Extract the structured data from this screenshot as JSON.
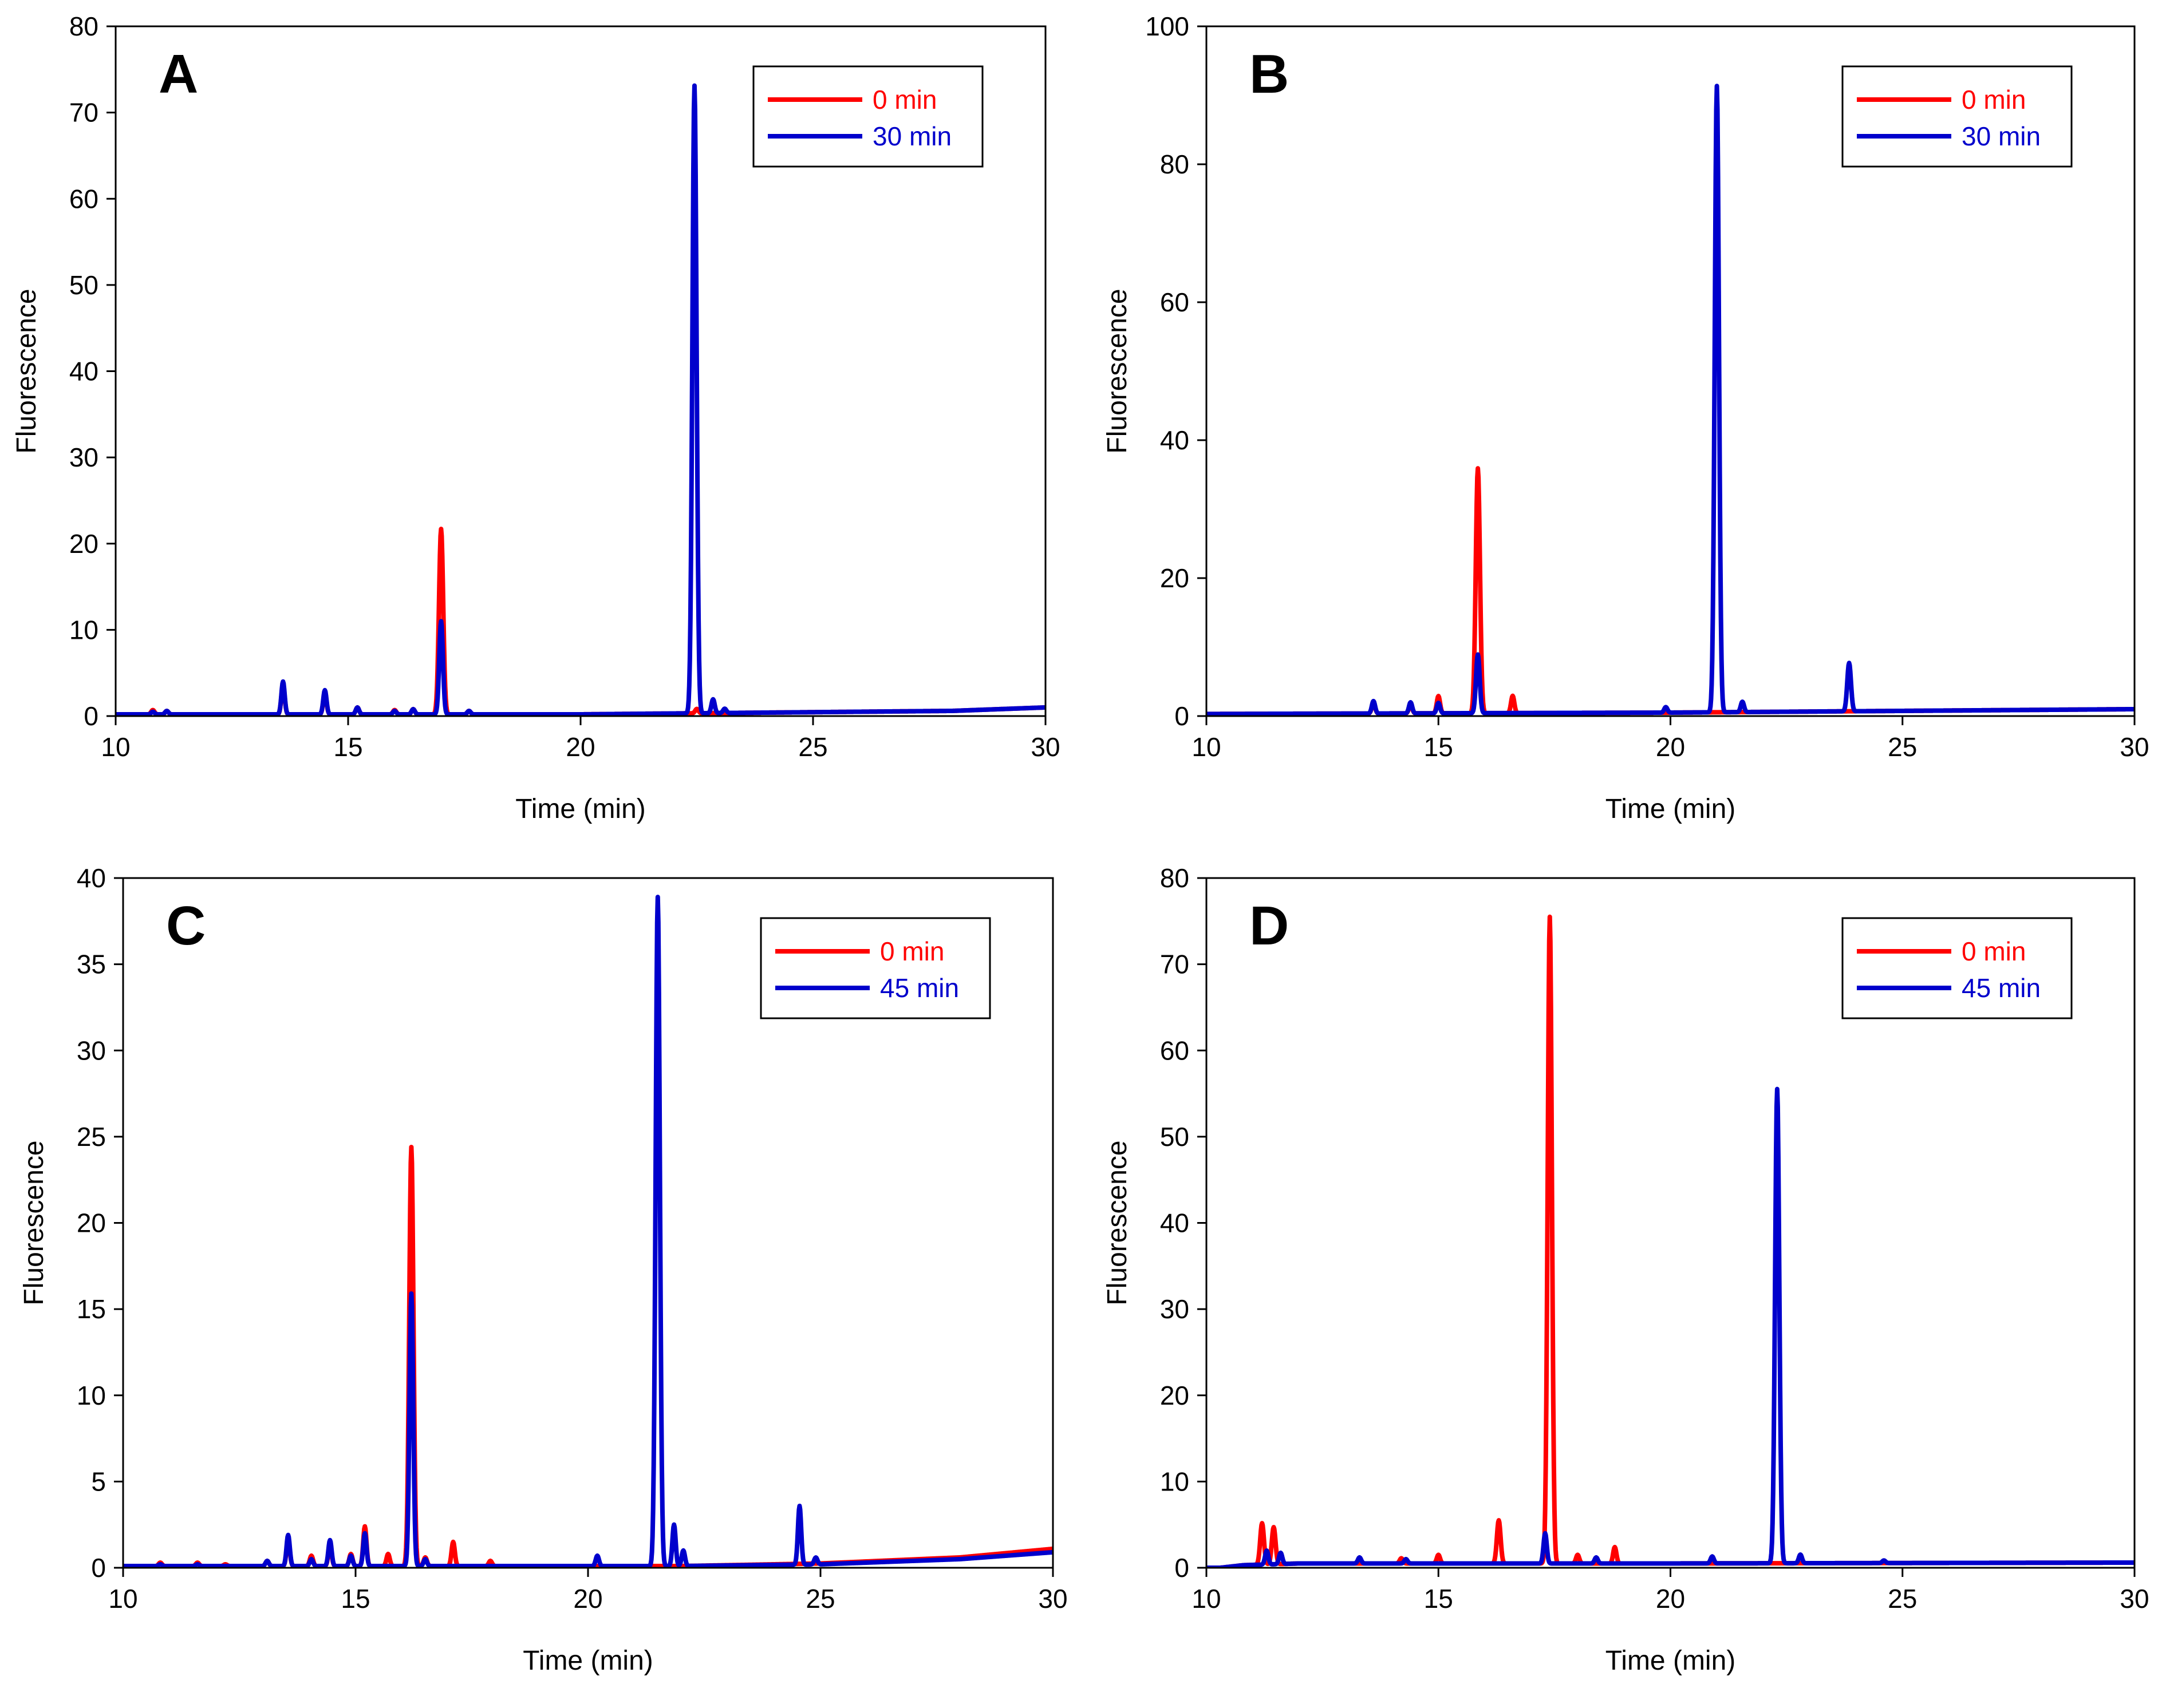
{
  "colors": {
    "red": "#ff0000",
    "blue": "#0000cc",
    "axis": "#000000"
  },
  "chart_data": [
    {
      "type": "line",
      "panel": "A",
      "xlabel": "Time (min)",
      "ylabel": "Fluorescence",
      "xlim": [
        10,
        30
      ],
      "ylim": [
        0,
        80
      ],
      "xticks": [
        10,
        15,
        20,
        25,
        30
      ],
      "yticks": [
        0,
        10,
        20,
        30,
        40,
        50,
        60,
        70,
        80
      ],
      "legend_position": "top-right",
      "series": [
        {
          "name": "0 min",
          "color": "#ff0000",
          "baseline": [
            [
              10,
              0.2
            ],
            [
              20,
              0.2
            ],
            [
              28,
              0.6
            ],
            [
              30,
              1.0
            ]
          ],
          "peaks": [
            [
              10.8,
              0.5
            ],
            [
              11.1,
              0.4
            ],
            [
              13.6,
              3.5
            ],
            [
              14.5,
              2.5
            ],
            [
              15.2,
              0.8
            ],
            [
              16.0,
              0.5
            ],
            [
              16.4,
              0.6
            ],
            [
              17.0,
              21.5
            ],
            [
              17.6,
              0.4
            ],
            [
              22.5,
              0.5
            ]
          ]
        },
        {
          "name": "30 min",
          "color": "#0000cc",
          "baseline": [
            [
              10,
              0.2
            ],
            [
              20,
              0.2
            ],
            [
              28,
              0.6
            ],
            [
              30,
              1.0
            ]
          ],
          "peaks": [
            [
              10.8,
              0.3
            ],
            [
              11.1,
              0.4
            ],
            [
              13.6,
              3.8
            ],
            [
              14.5,
              2.8
            ],
            [
              15.2,
              0.8
            ],
            [
              16.0,
              0.4
            ],
            [
              16.4,
              0.6
            ],
            [
              17.0,
              10.8
            ],
            [
              17.6,
              0.4
            ],
            [
              22.45,
              72.8
            ],
            [
              22.85,
              1.6
            ],
            [
              23.1,
              0.5
            ]
          ]
        }
      ]
    },
    {
      "type": "line",
      "panel": "B",
      "xlabel": "Time (min)",
      "ylabel": "Fluorescence",
      "xlim": [
        10,
        30
      ],
      "ylim": [
        0,
        100
      ],
      "xticks": [
        10,
        15,
        20,
        25,
        30
      ],
      "yticks": [
        0,
        20,
        40,
        60,
        80,
        100
      ],
      "legend_position": "top-right",
      "series": [
        {
          "name": "0 min",
          "color": "#ff0000",
          "baseline": [
            [
              10,
              0.3
            ],
            [
              20,
              0.5
            ],
            [
              30,
              1.0
            ]
          ],
          "peaks": [
            [
              13.6,
              1.5
            ],
            [
              14.4,
              1.2
            ],
            [
              15.0,
              2.5
            ],
            [
              15.85,
              35.5
            ],
            [
              16.6,
              2.5
            ]
          ]
        },
        {
          "name": "30 min",
          "color": "#0000cc",
          "baseline": [
            [
              10,
              0.3
            ],
            [
              20,
              0.5
            ],
            [
              30,
              1.0
            ]
          ],
          "peaks": [
            [
              13.6,
              1.8
            ],
            [
              14.4,
              1.6
            ],
            [
              15.0,
              1.5
            ],
            [
              15.85,
              8.5
            ],
            [
              19.9,
              0.8
            ],
            [
              21.0,
              90.8
            ],
            [
              21.55,
              1.5
            ],
            [
              23.85,
              7.0
            ]
          ]
        }
      ]
    },
    {
      "type": "line",
      "panel": "C",
      "xlabel": "Time (min)",
      "ylabel": "Fluorescence",
      "xlim": [
        10,
        30
      ],
      "ylim": [
        0,
        40
      ],
      "xticks": [
        10,
        15,
        20,
        25,
        30
      ],
      "yticks": [
        0,
        5,
        10,
        15,
        20,
        25,
        30,
        35,
        40
      ],
      "legend_position": "top-right",
      "series": [
        {
          "name": "0 min",
          "color": "#ff0000",
          "baseline": [
            [
              10,
              0.1
            ],
            [
              22,
              0.1
            ],
            [
              25,
              0.25
            ],
            [
              28,
              0.6
            ],
            [
              30,
              1.1
            ]
          ],
          "peaks": [
            [
              10.8,
              0.2
            ],
            [
              11.6,
              0.2
            ],
            [
              12.2,
              0.1
            ],
            [
              13.1,
              0.3
            ],
            [
              13.55,
              1.6
            ],
            [
              14.05,
              0.6
            ],
            [
              14.45,
              1.2
            ],
            [
              14.9,
              0.7
            ],
            [
              15.2,
              2.3
            ],
            [
              15.7,
              0.7
            ],
            [
              16.2,
              24.3
            ],
            [
              16.5,
              0.5
            ],
            [
              17.1,
              1.4
            ],
            [
              17.9,
              0.3
            ]
          ]
        },
        {
          "name": "45 min",
          "color": "#0000cc",
          "baseline": [
            [
              10,
              0.1
            ],
            [
              22,
              0.1
            ],
            [
              25,
              0.2
            ],
            [
              28,
              0.5
            ],
            [
              30,
              0.9
            ]
          ],
          "peaks": [
            [
              10.8,
              0.1
            ],
            [
              11.6,
              0.1
            ],
            [
              13.1,
              0.3
            ],
            [
              13.55,
              1.8
            ],
            [
              14.05,
              0.4
            ],
            [
              14.45,
              1.5
            ],
            [
              14.9,
              0.6
            ],
            [
              15.2,
              1.9
            ],
            [
              16.2,
              15.8
            ],
            [
              16.5,
              0.4
            ],
            [
              20.2,
              0.6
            ],
            [
              21.5,
              38.8
            ],
            [
              21.85,
              2.4
            ],
            [
              22.05,
              0.9
            ],
            [
              24.55,
              3.4
            ],
            [
              24.9,
              0.4
            ]
          ]
        }
      ]
    },
    {
      "type": "line",
      "panel": "D",
      "xlabel": "Time (min)",
      "ylabel": "Fluorescence",
      "xlim": [
        10,
        30
      ],
      "ylim": [
        0,
        80
      ],
      "xticks": [
        10,
        15,
        20,
        25,
        30
      ],
      "yticks": [
        0,
        10,
        20,
        30,
        40,
        50,
        60,
        70,
        80
      ],
      "legend_position": "top-right",
      "series": [
        {
          "name": "0 min",
          "color": "#ff0000",
          "baseline": [
            [
              10.3,
              0.0
            ],
            [
              10.8,
              0.3
            ],
            [
              12.0,
              0.5
            ],
            [
              20,
              0.5
            ],
            [
              30,
              0.6
            ]
          ],
          "peaks": [
            [
              11.2,
              4.8
            ],
            [
              11.45,
              4.3
            ],
            [
              14.2,
              0.6
            ],
            [
              15.0,
              1.0
            ],
            [
              16.3,
              5.0
            ],
            [
              17.4,
              75.0
            ],
            [
              18.0,
              1.0
            ],
            [
              18.8,
              1.9
            ]
          ]
        },
        {
          "name": "45 min",
          "color": "#0000cc",
          "baseline": [
            [
              10.3,
              0.0
            ],
            [
              10.8,
              0.3
            ],
            [
              12.0,
              0.5
            ],
            [
              20,
              0.5
            ],
            [
              30,
              0.6
            ]
          ],
          "peaks": [
            [
              11.3,
              1.6
            ],
            [
              11.6,
              1.3
            ],
            [
              13.3,
              0.7
            ],
            [
              14.3,
              0.5
            ],
            [
              17.3,
              3.5
            ],
            [
              18.4,
              0.7
            ],
            [
              20.9,
              0.8
            ],
            [
              22.3,
              55.0
            ],
            [
              22.8,
              1.0
            ],
            [
              24.6,
              0.3
            ]
          ]
        }
      ]
    }
  ]
}
